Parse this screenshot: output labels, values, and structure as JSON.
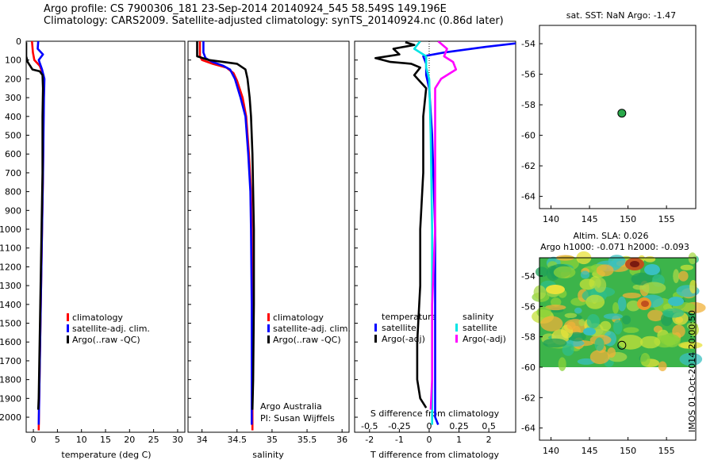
{
  "header": {
    "line1": "Argo profile: CS 7900306_181 23-Sep-2014 20140924_545 58.549S 149.196E",
    "line2": "Climatology: CARS2009. Satellite-adjusted climatology: synTS_20140924.nc (0.86d later)"
  },
  "colors": {
    "climatology": "#ff0000",
    "satellite": "#0000ff",
    "argo": "#000000",
    "sal_satellite": "#00e5e5",
    "sal_argo": "#ff00ff",
    "marker": "#2aa84a"
  },
  "chart_data": [
    {
      "id": "temperature",
      "type": "line",
      "xlabel": "temperature (deg C)",
      "ylabel": "",
      "xlim": [
        -1.5,
        31.5
      ],
      "ylim": [
        2080,
        0
      ],
      "xticks": [
        0,
        5,
        10,
        15,
        20,
        25,
        30
      ],
      "yticks": [
        0,
        100,
        200,
        300,
        400,
        500,
        600,
        700,
        800,
        900,
        1000,
        1100,
        1200,
        1300,
        1400,
        1500,
        1600,
        1700,
        1800,
        1900,
        2000
      ],
      "legend": [
        "climatology",
        "satellite-adj. clim.",
        "Argo(..raw -QC)"
      ],
      "series": [
        {
          "name": "climatology",
          "color": "climatology",
          "points": [
            [
              -0.3,
              0
            ],
            [
              -0.1,
              60
            ],
            [
              0.2,
              100
            ],
            [
              1.3,
              130
            ],
            [
              2.1,
              180
            ],
            [
              2.2,
              250
            ],
            [
              2.1,
              400
            ],
            [
              2.0,
              700
            ],
            [
              1.8,
              1000
            ],
            [
              1.6,
              1300
            ],
            [
              1.4,
              1600
            ],
            [
              1.2,
              1900
            ],
            [
              1.1,
              2070
            ]
          ]
        },
        {
          "name": "satellite-adj. clim.",
          "color": "satellite",
          "points": [
            [
              1.0,
              0
            ],
            [
              0.9,
              40
            ],
            [
              2.0,
              70
            ],
            [
              1.1,
              100
            ],
            [
              1.8,
              150
            ],
            [
              2.3,
              200
            ],
            [
              2.2,
              300
            ],
            [
              2.1,
              500
            ],
            [
              2.0,
              700
            ],
            [
              1.8,
              1000
            ],
            [
              1.6,
              1300
            ],
            [
              1.4,
              1600
            ],
            [
              1.2,
              1900
            ],
            [
              1.1,
              2040
            ]
          ]
        },
        {
          "name": "Argo(..raw -QC)",
          "color": "argo",
          "points": [
            [
              -1.5,
              5
            ],
            [
              -1.5,
              80
            ],
            [
              -1.2,
              110
            ],
            [
              -0.2,
              150
            ],
            [
              1.3,
              160
            ],
            [
              1.9,
              180
            ],
            [
              2.0,
              250
            ],
            [
              1.9,
              400
            ],
            [
              1.9,
              700
            ],
            [
              1.7,
              1000
            ],
            [
              1.5,
              1300
            ],
            [
              1.3,
              1600
            ],
            [
              1.1,
              1900
            ],
            [
              1.0,
              1960
            ]
          ]
        }
      ]
    },
    {
      "id": "salinity",
      "type": "line",
      "xlabel": "salinity",
      "ylabel": "",
      "xlim": [
        33.8,
        36.1
      ],
      "ylim": [
        2080,
        0
      ],
      "xticks": [
        34,
        34.5,
        35,
        35.5,
        36
      ],
      "legend": [
        "climatology",
        "satellite-adj. clim.",
        "Argo(..raw -QC)"
      ],
      "annotations": [
        "Argo Australia",
        "PI: Susan Wijffels"
      ],
      "series": [
        {
          "name": "climatology",
          "color": "climatology",
          "points": [
            [
              33.97,
              0
            ],
            [
              33.97,
              80
            ],
            [
              34.0,
              100
            ],
            [
              34.15,
              120
            ],
            [
              34.35,
              140
            ],
            [
              34.45,
              170
            ],
            [
              34.5,
              210
            ],
            [
              34.58,
              300
            ],
            [
              34.63,
              400
            ],
            [
              34.67,
              600
            ],
            [
              34.7,
              800
            ],
            [
              34.71,
              1000
            ],
            [
              34.72,
              1400
            ],
            [
              34.72,
              1800
            ],
            [
              34.72,
              2070
            ]
          ]
        },
        {
          "name": "satellite-adj. clim.",
          "color": "satellite",
          "points": [
            [
              34.02,
              0
            ],
            [
              34.02,
              60
            ],
            [
              34.05,
              90
            ],
            [
              34.15,
              110
            ],
            [
              34.3,
              130
            ],
            [
              34.4,
              150
            ],
            [
              34.47,
              200
            ],
            [
              34.55,
              300
            ],
            [
              34.62,
              400
            ],
            [
              34.66,
              600
            ],
            [
              34.69,
              800
            ],
            [
              34.7,
              1000
            ],
            [
              34.71,
              1400
            ],
            [
              34.71,
              1800
            ],
            [
              34.71,
              2040
            ]
          ]
        },
        {
          "name": "Argo(..raw -QC)",
          "color": "argo",
          "points": [
            [
              33.93,
              0
            ],
            [
              33.93,
              80
            ],
            [
              34.1,
              100
            ],
            [
              34.5,
              120
            ],
            [
              34.62,
              150
            ],
            [
              34.65,
              200
            ],
            [
              34.68,
              300
            ],
            [
              34.7,
              400
            ],
            [
              34.72,
              600
            ],
            [
              34.73,
              800
            ],
            [
              34.74,
              1000
            ],
            [
              34.74,
              1400
            ],
            [
              34.73,
              1800
            ],
            [
              34.72,
              1960
            ]
          ]
        }
      ]
    },
    {
      "id": "difference",
      "type": "line",
      "xlabel": "T difference from climatology",
      "xlabel_top": "S difference from climatology",
      "xlim": [
        -2.5,
        2.9
      ],
      "ylim": [
        2080,
        0
      ],
      "xticks": [
        -2,
        -1,
        0,
        1,
        2
      ],
      "xticks_s": [
        "-0.5",
        "-0.25",
        "0",
        "0.25",
        "0.5"
      ],
      "xticks_s_pos": [
        -2,
        -1,
        0,
        1,
        2
      ],
      "legend_left_title": "temperature",
      "legend_right_title": "salinity",
      "legend": [
        "satellite",
        "Argo(-adj)",
        "satellite",
        "Argo(-adj)"
      ],
      "series": [
        {
          "name": "temperature satellite",
          "color": "satellite",
          "points": [
            [
              3.5,
              0
            ],
            [
              1.9,
              30
            ],
            [
              0.5,
              60
            ],
            [
              -0.2,
              80
            ],
            [
              -0.1,
              120
            ],
            [
              -0.1,
              180
            ],
            [
              0.0,
              250
            ],
            [
              0.1,
              500
            ],
            [
              0.2,
              1000
            ],
            [
              0.2,
              1500
            ],
            [
              0.2,
              2000
            ],
            [
              0.3,
              2040
            ]
          ]
        },
        {
          "name": "temperature Argo(-adj)",
          "color": "argo",
          "points": [
            [
              -0.8,
              5
            ],
            [
              -0.5,
              20
            ],
            [
              -1.2,
              40
            ],
            [
              -1.0,
              70
            ],
            [
              -1.8,
              90
            ],
            [
              -1.3,
              110
            ],
            [
              -0.6,
              120
            ],
            [
              -0.3,
              140
            ],
            [
              -0.5,
              180
            ],
            [
              -0.1,
              250
            ],
            [
              -0.2,
              400
            ],
            [
              -0.2,
              700
            ],
            [
              -0.3,
              1000
            ],
            [
              -0.3,
              1300
            ],
            [
              -0.4,
              1600
            ],
            [
              -0.4,
              1800
            ],
            [
              -0.3,
              1900
            ],
            [
              -0.1,
              1950
            ]
          ]
        },
        {
          "name": "salinity satellite",
          "color": "sal_satellite",
          "points": [
            [
              -0.3,
              0
            ],
            [
              -0.5,
              40
            ],
            [
              -0.1,
              80
            ],
            [
              -0.1,
              140
            ],
            [
              0.0,
              200
            ],
            [
              0.05,
              500
            ],
            [
              0.1,
              1000
            ],
            [
              0.1,
              1500
            ],
            [
              0.1,
              2000
            ],
            [
              0.1,
              2040
            ]
          ]
        },
        {
          "name": "salinity Argo(-adj)",
          "color": "sal_argo",
          "points": [
            [
              0.3,
              0
            ],
            [
              0.6,
              40
            ],
            [
              0.5,
              80
            ],
            [
              0.8,
              110
            ],
            [
              0.9,
              150
            ],
            [
              0.4,
              200
            ],
            [
              0.2,
              250
            ],
            [
              0.2,
              400
            ],
            [
              0.2,
              700
            ],
            [
              0.2,
              1000
            ],
            [
              0.1,
              1400
            ],
            [
              0.1,
              1800
            ],
            [
              0.05,
              1960
            ]
          ]
        }
      ]
    },
    {
      "id": "map_sst",
      "type": "scatter",
      "title": "sat. SST: NaN Argo: -1.47",
      "xlim": [
        138.5,
        158.8
      ],
      "ylim": [
        -64.8,
        -52.8
      ],
      "xticks": [
        140,
        145,
        150,
        155
      ],
      "yticks": [
        -54,
        -56,
        -58,
        -60,
        -62,
        -64
      ],
      "points": [
        [
          149.2,
          -58.55
        ]
      ]
    },
    {
      "id": "map_sla",
      "type": "heatmap",
      "title": "Altim. SLA: 0.026",
      "subtitle": "Argo h1000: -0.071 h2000: -0.093",
      "xlim": [
        138.5,
        158.8
      ],
      "ylim": [
        -64.8,
        -52.8
      ],
      "xticks": [
        140,
        145,
        150,
        155
      ],
      "yticks": [
        -54,
        -56,
        -58,
        -60,
        -62,
        -64
      ],
      "points": [
        [
          149.2,
          -58.55
        ]
      ]
    }
  ],
  "footer": {
    "vertical": "IMOS 01-Oct-2014 20:00:50"
  }
}
